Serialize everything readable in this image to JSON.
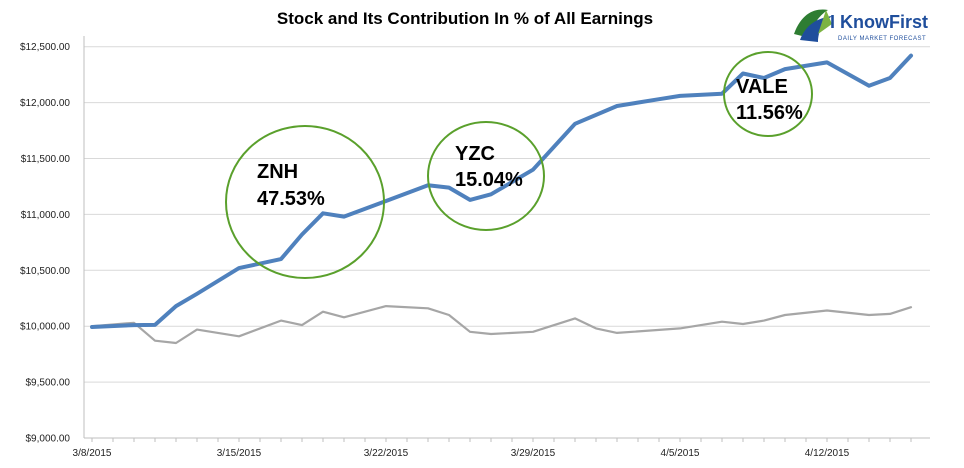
{
  "chart_data": {
    "type": "line",
    "title": "Stock and Its Contribution In % of All Earnings",
    "xlabel": "",
    "ylabel": "",
    "x_ticks": [
      "3/8/2015",
      "3/15/2015",
      "3/22/2015",
      "3/29/2015",
      "4/5/2015",
      "4/12/2015"
    ],
    "y_ticks": [
      "$9,000.00",
      "$9,500.00",
      "$10,000.00",
      "$10,500.00",
      "$11,000.00",
      "$11,500.00",
      "$12,000.00",
      "$12,500.00"
    ],
    "ylim": [
      9000,
      12600
    ],
    "xlim": [
      "2015-03-08",
      "2015-04-16"
    ],
    "grid": "horizontal",
    "legend": "none",
    "series": [
      {
        "color": "#4f81bd",
        "points": [
          [
            "2015-03-08",
            9993
          ],
          [
            "2015-03-10",
            10010
          ],
          [
            "2015-03-11",
            10012
          ],
          [
            "2015-03-12",
            10180
          ],
          [
            "2015-03-13",
            10290
          ],
          [
            "2015-03-15",
            10520
          ],
          [
            "2015-03-17",
            10600
          ],
          [
            "2015-03-18",
            10820
          ],
          [
            "2015-03-19",
            11010
          ],
          [
            "2015-03-20",
            10980
          ],
          [
            "2015-03-22",
            11120
          ],
          [
            "2015-03-24",
            11260
          ],
          [
            "2015-03-25",
            11240
          ],
          [
            "2015-03-26",
            11130
          ],
          [
            "2015-03-27",
            11180
          ],
          [
            "2015-03-29",
            11400
          ],
          [
            "2015-03-31",
            11810
          ],
          [
            "2015-04-02",
            11970
          ],
          [
            "2015-04-04",
            12030
          ],
          [
            "2015-04-05",
            12060
          ],
          [
            "2015-04-07",
            12080
          ],
          [
            "2015-04-08",
            12260
          ],
          [
            "2015-04-09",
            12220
          ],
          [
            "2015-04-10",
            12300
          ],
          [
            "2015-04-12",
            12360
          ],
          [
            "2015-04-14",
            12150
          ],
          [
            "2015-04-15",
            12220
          ],
          [
            "2015-04-16",
            12420
          ]
        ]
      },
      {
        "color": "#a6a6a6",
        "points": [
          [
            "2015-03-08",
            10000
          ],
          [
            "2015-03-10",
            10030
          ],
          [
            "2015-03-11",
            9870
          ],
          [
            "2015-03-12",
            9850
          ],
          [
            "2015-03-13",
            9970
          ],
          [
            "2015-03-15",
            9910
          ],
          [
            "2015-03-17",
            10050
          ],
          [
            "2015-03-18",
            10010
          ],
          [
            "2015-03-19",
            10130
          ],
          [
            "2015-03-20",
            10080
          ],
          [
            "2015-03-22",
            10180
          ],
          [
            "2015-03-24",
            10160
          ],
          [
            "2015-03-25",
            10100
          ],
          [
            "2015-03-26",
            9950
          ],
          [
            "2015-03-27",
            9930
          ],
          [
            "2015-03-29",
            9950
          ],
          [
            "2015-03-31",
            10070
          ],
          [
            "2015-04-01",
            9980
          ],
          [
            "2015-04-02",
            9940
          ],
          [
            "2015-04-05",
            9980
          ],
          [
            "2015-04-07",
            10040
          ],
          [
            "2015-04-08",
            10020
          ],
          [
            "2015-04-09",
            10050
          ],
          [
            "2015-04-10",
            10100
          ],
          [
            "2015-04-12",
            10140
          ],
          [
            "2015-04-14",
            10100
          ],
          [
            "2015-04-15",
            10110
          ],
          [
            "2015-04-16",
            10170
          ]
        ]
      }
    ],
    "annotations": [
      {
        "ticker": "ZNH",
        "percent": "47.53%",
        "color": "#5aa02c"
      },
      {
        "ticker": "YZC",
        "percent": "15.04%",
        "color": "#5aa02c"
      },
      {
        "ticker": "VALE",
        "percent": "11.56%",
        "color": "#5aa02c"
      }
    ]
  },
  "logo": {
    "text": "I KnowFirst",
    "tagline": "DAILY MARKET FORECAST"
  }
}
